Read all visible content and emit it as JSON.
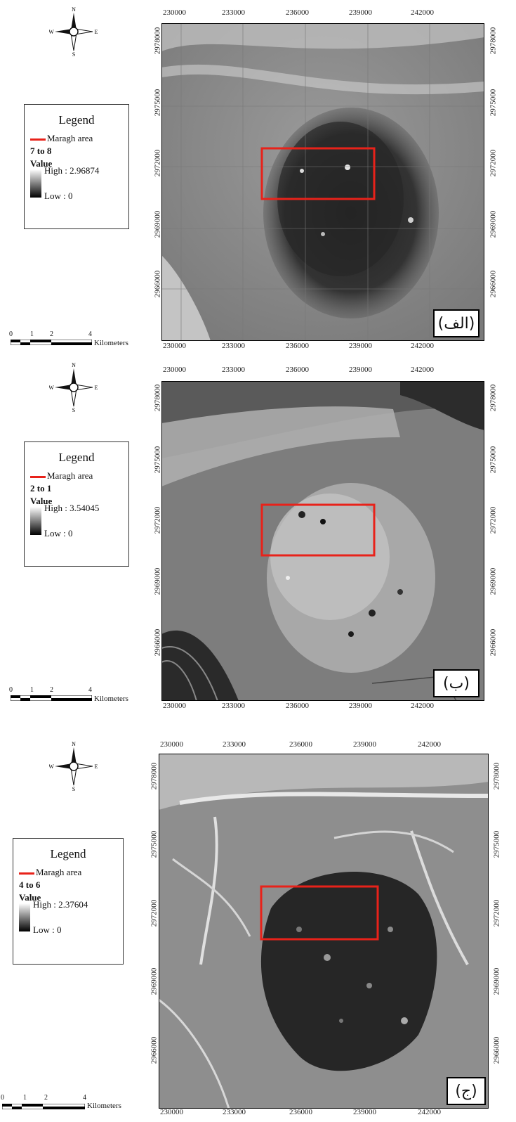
{
  "panels": [
    {
      "label": "(الف)",
      "legend": {
        "title": "Legend",
        "boundary": "Maragh area",
        "band": "7 to 8",
        "value_header": "Value",
        "high": "High : 2.96874",
        "low": "Low : 0"
      },
      "x_ticks": [
        "230000",
        "233000",
        "236000",
        "239000",
        "242000"
      ],
      "y_ticks": [
        "2978000",
        "2975000",
        "2972000",
        "2969000",
        "2966000"
      ],
      "scale": {
        "ticks": [
          "0",
          "1",
          "2",
          "4"
        ],
        "unit": "Kilometers"
      },
      "compass": {
        "n": "N",
        "s": "S",
        "e": "E",
        "w": "W"
      }
    },
    {
      "label": "(ب)",
      "legend": {
        "title": "Legend",
        "boundary": "Maragh area",
        "band": "2 to 1",
        "value_header": "Value",
        "high": "High : 3.54045",
        "low": "Low : 0"
      },
      "x_ticks": [
        "230000",
        "233000",
        "236000",
        "239000",
        "242000"
      ],
      "y_ticks": [
        "2978000",
        "2975000",
        "2972000",
        "2969000",
        "2966000"
      ],
      "scale": {
        "ticks": [
          "0",
          "1",
          "2",
          "4"
        ],
        "unit": "Kilometers"
      },
      "compass": {
        "n": "N",
        "s": "S",
        "e": "E",
        "w": "W"
      }
    },
    {
      "label": "(ج)",
      "legend": {
        "title": "Legend",
        "boundary": "Maragh area",
        "band": "4 to 6",
        "value_header": "Value",
        "high": "High : 2.37604",
        "low": "Low : 0"
      },
      "x_ticks": [
        "230000",
        "233000",
        "236000",
        "239000",
        "242000"
      ],
      "y_ticks": [
        "2978000",
        "2975000",
        "2972000",
        "2969000",
        "2966000"
      ],
      "scale": {
        "ticks": [
          "0",
          "1",
          "2",
          "4"
        ],
        "unit": "Kilometers"
      },
      "compass": {
        "n": "N",
        "s": "S",
        "e": "E",
        "w": "W"
      }
    }
  ],
  "colors": {
    "boundary": "#e8221a",
    "frame": "#000000"
  }
}
